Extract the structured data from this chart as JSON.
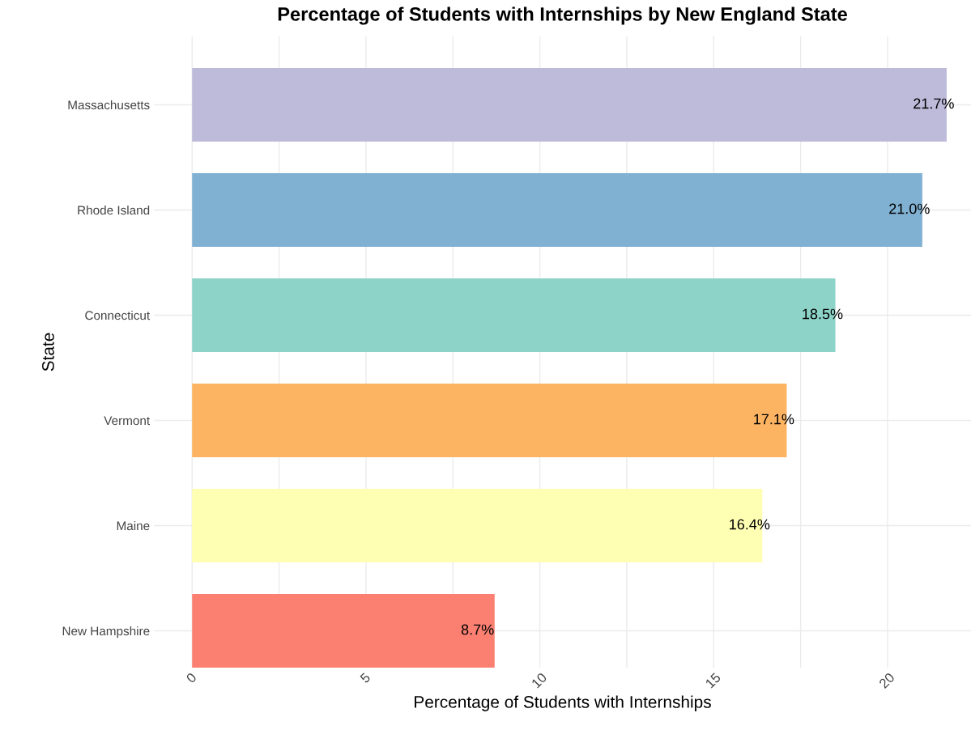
{
  "chart_data": {
    "type": "bar",
    "orientation": "horizontal",
    "title": "Percentage of Students with Internships by New England State",
    "xlabel": "Percentage of Students with Internships",
    "ylabel": "State",
    "categories": [
      "Massachusetts",
      "Rhode Island",
      "Connecticut",
      "Vermont",
      "Maine",
      "New Hampshire"
    ],
    "values": [
      21.7,
      21.0,
      18.5,
      17.1,
      16.4,
      8.7
    ],
    "value_labels": [
      "21.7%",
      "21.0%",
      "18.5%",
      "17.1%",
      "16.4%",
      "8.7%"
    ],
    "colors": [
      "#bebada",
      "#80b1d3",
      "#8dd3c7",
      "#fdb462",
      "#ffffb3",
      "#fb8072"
    ],
    "xlim": [
      -1.1,
      22.4
    ],
    "xticks": [
      0,
      {
        "value": 2.5,
        "label": null
      },
      5,
      {
        "value": 7.5,
        "label": null
      },
      10,
      {
        "value": 12.5,
        "label": null
      },
      15,
      {
        "value": 17.5,
        "label": null
      },
      20
    ],
    "grid": true
  }
}
